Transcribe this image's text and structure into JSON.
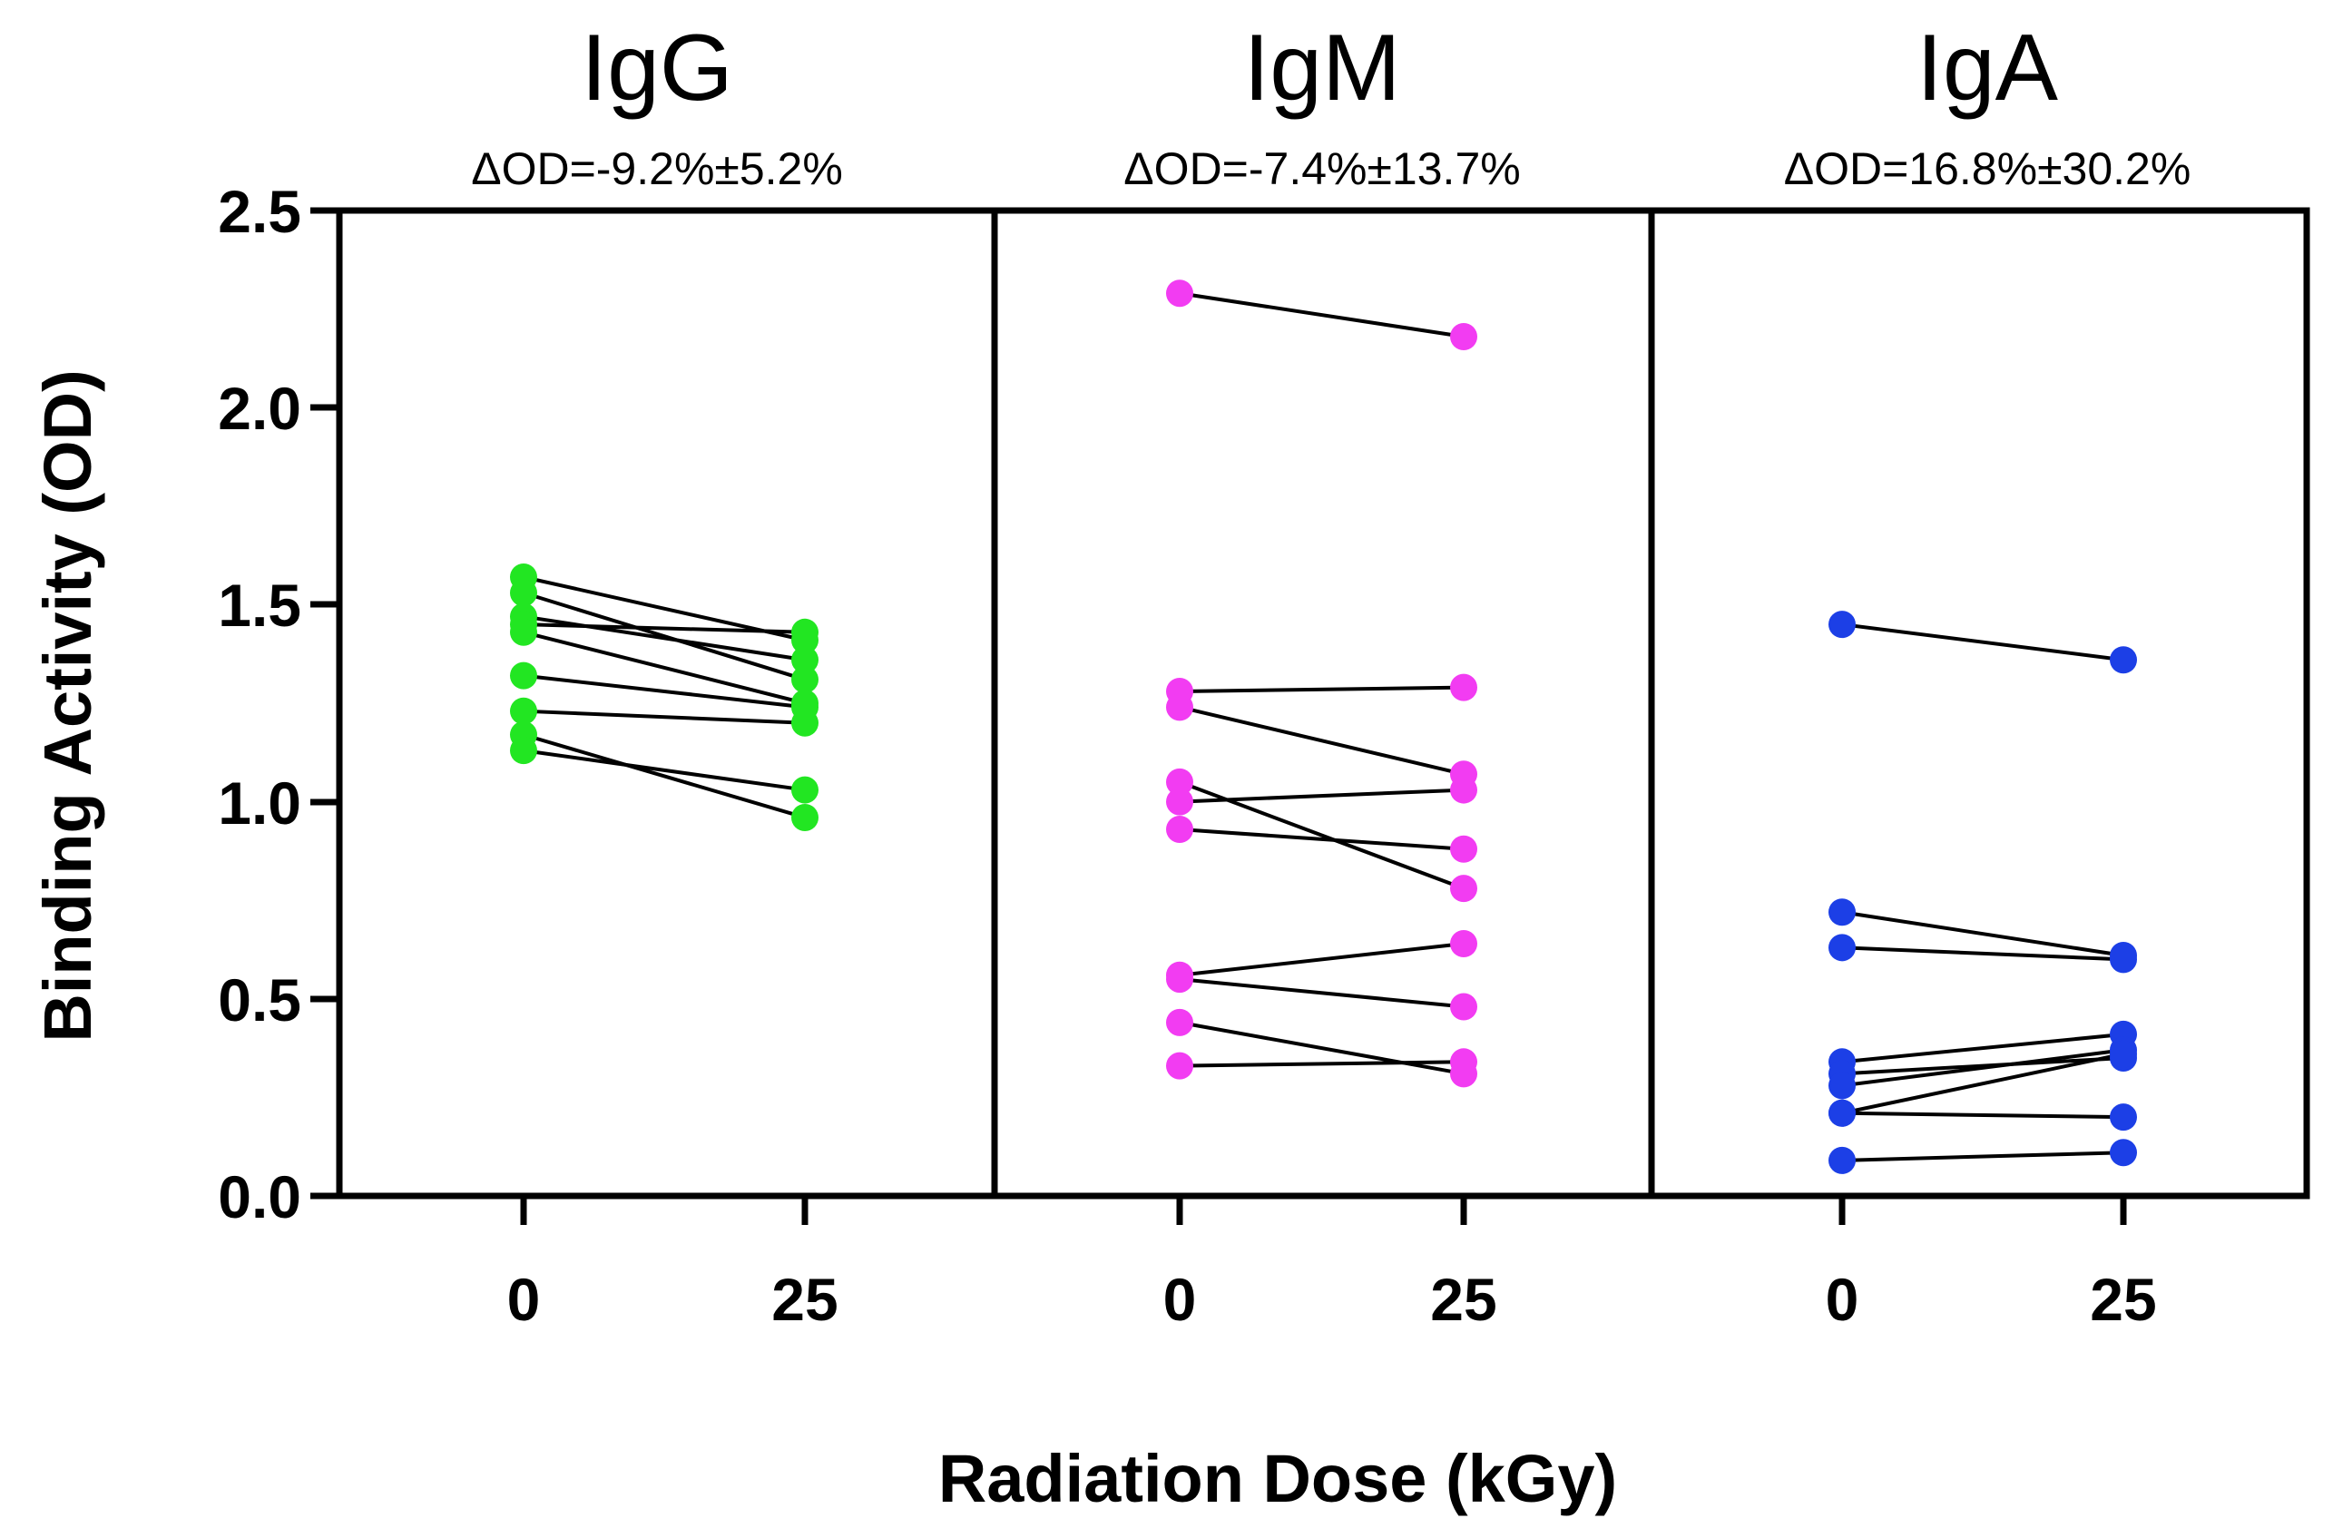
{
  "chart_data": {
    "type": "line",
    "xlabel": "Radiation Dose (kGy)",
    "ylabel": "Binding Activity (OD)",
    "ylim": [
      0,
      2.5
    ],
    "yticks": [
      "0.0",
      "0.5",
      "1.0",
      "1.5",
      "2.0",
      "2.5"
    ],
    "categories": [
      "0",
      "25"
    ],
    "panels": [
      {
        "title": "IgG",
        "subtitle": "ΔOD=-9.2%±5.2%",
        "color": "#22e622",
        "pairs": [
          [
            1.57,
            1.41
          ],
          [
            1.53,
            1.31
          ],
          [
            1.47,
            1.36
          ],
          [
            1.45,
            1.43
          ],
          [
            1.43,
            1.25
          ],
          [
            1.32,
            1.24
          ],
          [
            1.23,
            1.2
          ],
          [
            1.17,
            0.96
          ],
          [
            1.13,
            1.03
          ]
        ]
      },
      {
        "title": "IgM",
        "subtitle": "ΔOD=-7.4%±13.7%",
        "color": "#f23cf2",
        "pairs": [
          [
            2.29,
            2.18
          ],
          [
            1.28,
            1.29
          ],
          [
            1.24,
            1.07
          ],
          [
            1.05,
            0.78
          ],
          [
            1.0,
            1.03
          ],
          [
            0.93,
            0.88
          ],
          [
            0.56,
            0.64
          ],
          [
            0.55,
            0.48
          ],
          [
            0.44,
            0.31
          ],
          [
            0.33,
            0.34
          ]
        ]
      },
      {
        "title": "IgA",
        "subtitle": "ΔOD=16.8%±30.2%",
        "color": "#1c3fe6",
        "pairs": [
          [
            1.45,
            1.36
          ],
          [
            0.72,
            0.61
          ],
          [
            0.63,
            0.6
          ],
          [
            0.34,
            0.41
          ],
          [
            0.31,
            0.35
          ],
          [
            0.28,
            0.37
          ],
          [
            0.21,
            0.36
          ],
          [
            0.21,
            0.2
          ],
          [
            0.09,
            0.11
          ]
        ]
      }
    ]
  }
}
